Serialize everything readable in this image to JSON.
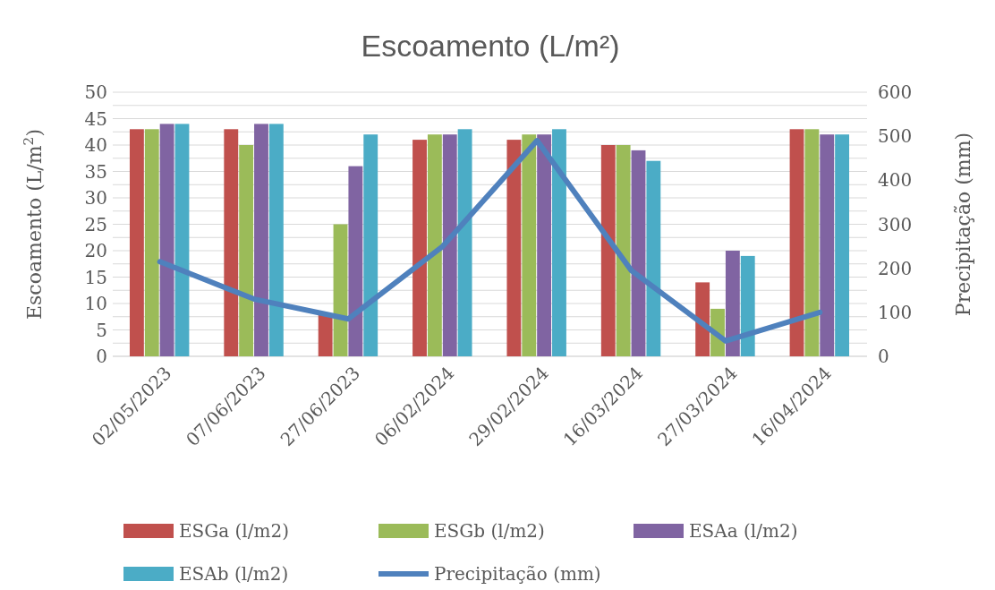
{
  "chart_data": {
    "type": "bar",
    "title": "Escoamento (L/m²)",
    "ylabel": "Escoamento (L/m$^{2}$)",
    "y2label": "Precipitação (mm)",
    "categories": [
      "02/05/2023",
      "07/06/2023",
      "27/06/2023",
      "06/02/2024",
      "29/02/2024",
      "16/03/2024",
      "27/03/2024",
      "16/04/2024"
    ],
    "series": [
      {
        "name": "ESGa (l/m2)",
        "color": "#c0504d",
        "values": [
          43,
          43,
          8,
          41,
          41,
          40,
          14,
          43
        ]
      },
      {
        "name": "ESGb (l/m2)",
        "color": "#9bbb59",
        "values": [
          43,
          40,
          25,
          42,
          42,
          40,
          9,
          43
        ]
      },
      {
        "name": "ESAa (l/m2)",
        "color": "#8064a2",
        "values": [
          44,
          44,
          36,
          42,
          42,
          39,
          20,
          42
        ]
      },
      {
        "name": "ESAb (l/m2)",
        "color": "#4bacc6",
        "values": [
          44,
          44,
          42,
          43,
          43,
          37,
          19,
          42
        ]
      },
      {
        "name": "Precipitação (mm)",
        "type": "line",
        "axis": "y2",
        "color": "#4f81bd",
        "values": [
          215,
          130,
          85,
          250,
          490,
          195,
          35,
          100
        ]
      }
    ],
    "ylim": [
      0,
      50
    ],
    "yticks": [
      0,
      {
        "value": 2.5,
        "label": null
      },
      5,
      {
        "value": 7.5,
        "label": null
      },
      10,
      {
        "value": 12.5,
        "label": null
      },
      15,
      {
        "value": 17.5,
        "label": null
      },
      20,
      {
        "value": 22.5,
        "label": null
      },
      25,
      {
        "value": 27.5,
        "label": null
      },
      30,
      {
        "value": 32.5,
        "label": null
      },
      35,
      {
        "value": 37.5,
        "label": null
      },
      40,
      {
        "value": 42.5,
        "label": null
      },
      45,
      {
        "value": 47.5,
        "label": null
      },
      50
    ],
    "y2lim": [
      0,
      600
    ],
    "y2ticks": [
      0,
      100,
      200,
      300,
      400,
      500,
      600
    ],
    "grid": "y",
    "legend": "bottom",
    "marker": "none",
    "line_style": "solid"
  }
}
